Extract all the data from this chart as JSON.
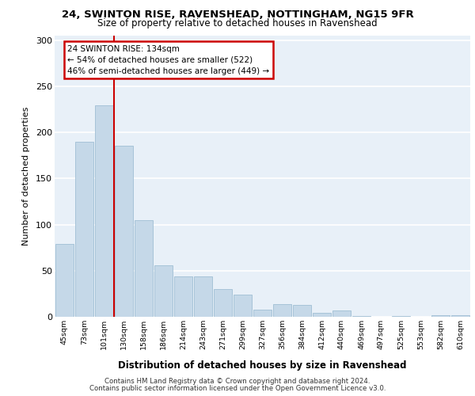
{
  "title1": "24, SWINTON RISE, RAVENSHEAD, NOTTINGHAM, NG15 9FR",
  "title2": "Size of property relative to detached houses in Ravenshead",
  "xlabel": "Distribution of detached houses by size in Ravenshead",
  "ylabel": "Number of detached properties",
  "categories": [
    "45sqm",
    "73sqm",
    "101sqm",
    "130sqm",
    "158sqm",
    "186sqm",
    "214sqm",
    "243sqm",
    "271sqm",
    "299sqm",
    "327sqm",
    "356sqm",
    "384sqm",
    "412sqm",
    "440sqm",
    "469sqm",
    "497sqm",
    "525sqm",
    "553sqm",
    "582sqm",
    "610sqm"
  ],
  "values": [
    79,
    190,
    229,
    186,
    105,
    56,
    44,
    44,
    30,
    24,
    8,
    14,
    13,
    4,
    7,
    1,
    0,
    1,
    0,
    2,
    2
  ],
  "bar_color": "#c5d8e8",
  "bar_edge_color": "#a0bfd4",
  "annotation_text_line1": "24 SWINTON RISE: 134sqm",
  "annotation_text_line2": "← 54% of detached houses are smaller (522)",
  "annotation_text_line3": "46% of semi-detached houses are larger (449) →",
  "annotation_box_color": "#ffffff",
  "annotation_box_edge_color": "#cc0000",
  "vline_color": "#cc0000",
  "vline_x_index": 3,
  "ylim": [
    0,
    305
  ],
  "yticks": [
    0,
    50,
    100,
    150,
    200,
    250,
    300
  ],
  "background_color": "#e8f0f8",
  "grid_color": "#ffffff",
  "footer_line1": "Contains HM Land Registry data © Crown copyright and database right 2024.",
  "footer_line2": "Contains public sector information licensed under the Open Government Licence v3.0."
}
